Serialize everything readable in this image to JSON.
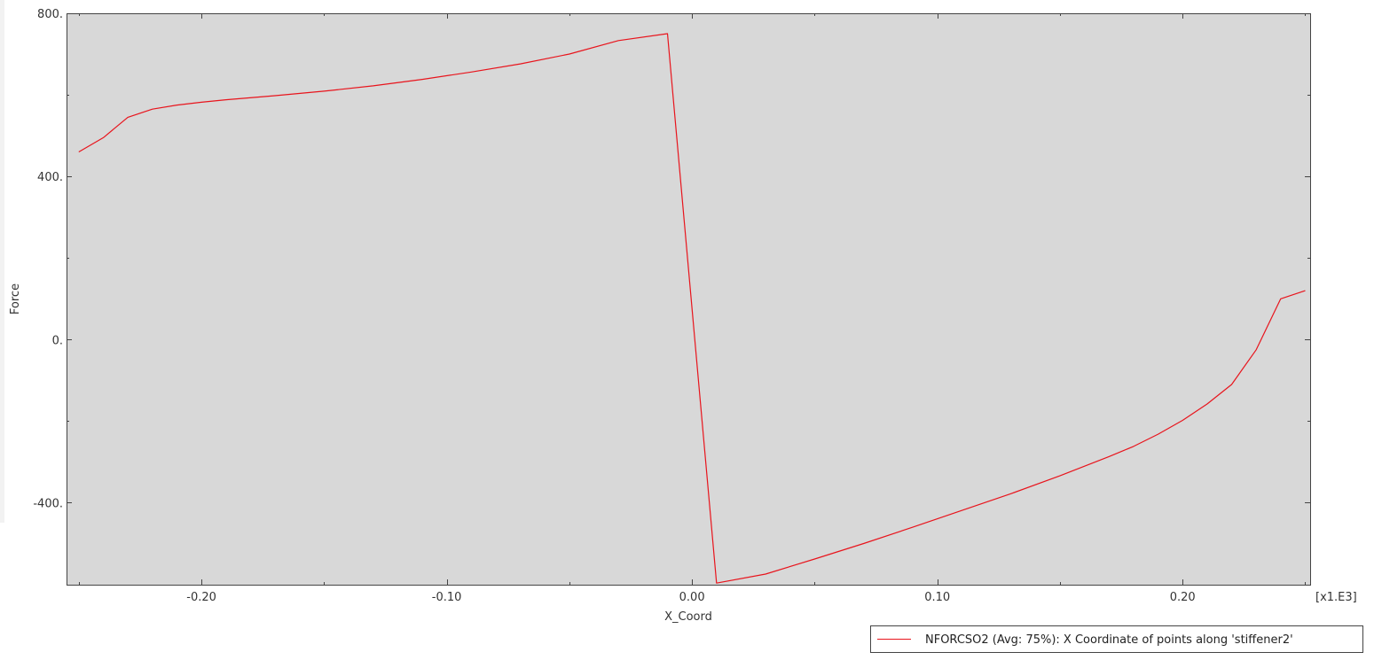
{
  "chart_data": {
    "type": "line",
    "xlabel": "X_Coord",
    "ylabel": "Force",
    "x_multiplier_label": "[x1.E3]",
    "xlim": [
      -0.255,
      0.252
    ],
    "ylim": [
      -601,
      800
    ],
    "x_ticks": [
      {
        "value": -0.2,
        "label": "-0.20"
      },
      {
        "value": -0.1,
        "label": "-0.10"
      },
      {
        "value": 0.0,
        "label": "0.00"
      },
      {
        "value": 0.1,
        "label": "0.10"
      },
      {
        "value": 0.2,
        "label": "0.20"
      }
    ],
    "y_ticks": [
      {
        "value": 800,
        "label": "800."
      },
      {
        "value": 400,
        "label": "400."
      },
      {
        "value": 0,
        "label": "0."
      },
      {
        "value": -400,
        "label": "-400."
      }
    ],
    "x_minor_step": 0.05,
    "y_minor_step": 200,
    "plot_background": "#d8d8d8",
    "grid": false,
    "legend_position": "bottom-right",
    "series": [
      {
        "name": "NFORCSO2 (Avg: 75%): X Coordinate of points along 'stiffener2'",
        "color": "#e8141c",
        "x": [
          -0.25,
          -0.24,
          -0.23,
          -0.22,
          -0.21,
          -0.2,
          -0.19,
          -0.17,
          -0.15,
          -0.13,
          -0.11,
          -0.09,
          -0.07,
          -0.05,
          -0.03,
          -0.01,
          0.01,
          0.03,
          0.05,
          0.07,
          0.09,
          0.11,
          0.13,
          0.15,
          0.17,
          0.18,
          0.19,
          0.2,
          0.21,
          0.22,
          0.23,
          0.24,
          0.25
        ],
        "y": [
          460,
          495,
          545,
          565,
          575,
          582,
          588,
          598,
          609,
          622,
          638,
          656,
          676,
          700,
          733,
          750,
          -597,
          -575,
          -538,
          -500,
          -460,
          -419,
          -378,
          -334,
          -287,
          -262,
          -232,
          -198,
          -158,
          -110,
          -25,
          100,
          120
        ]
      }
    ]
  }
}
